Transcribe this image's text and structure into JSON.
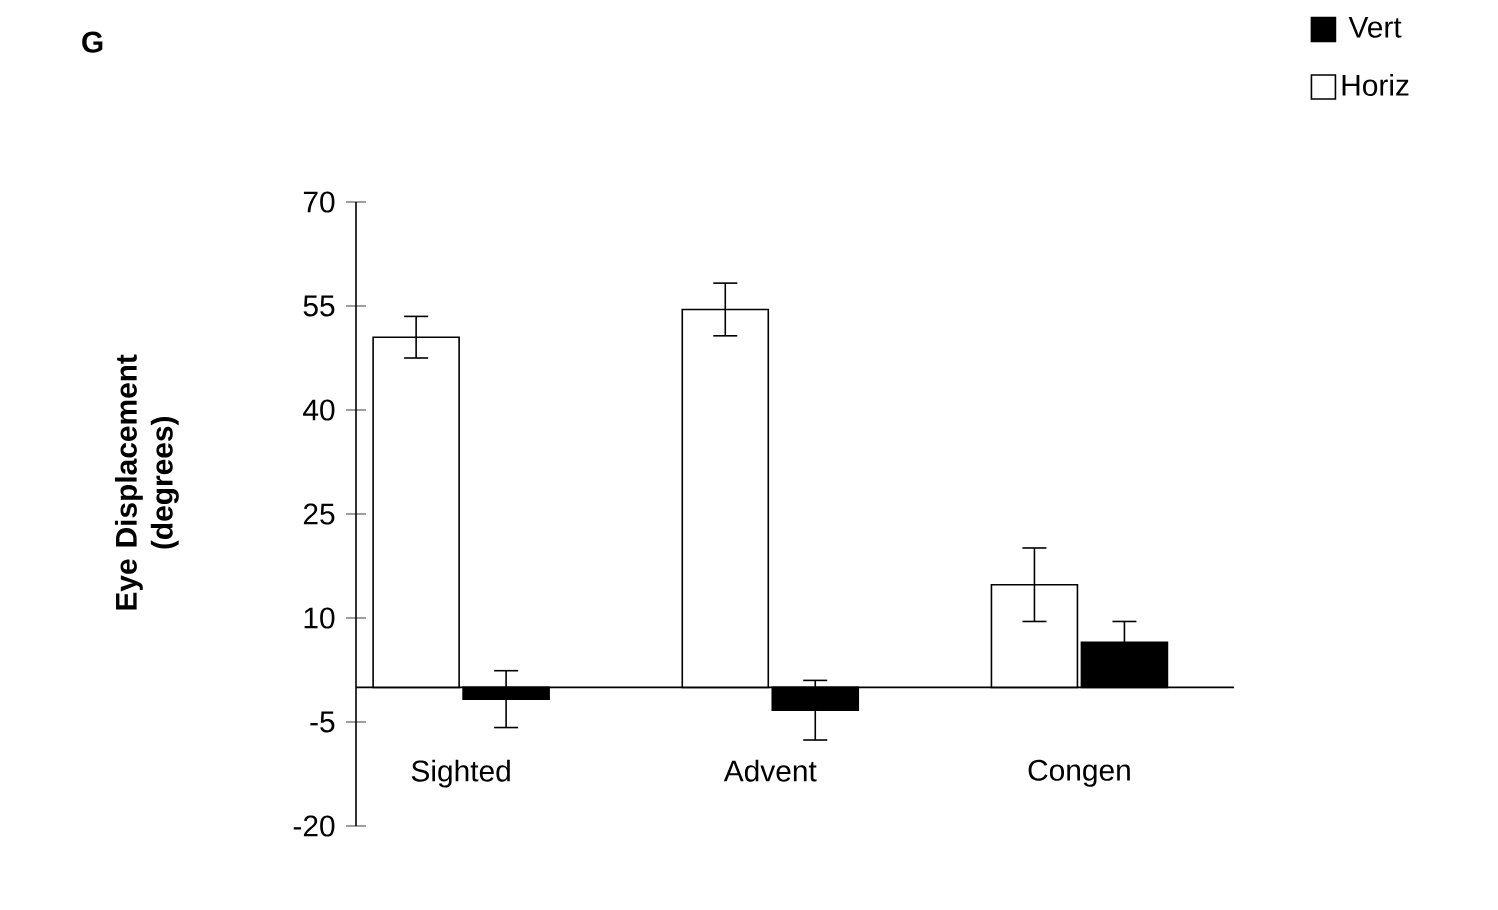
{
  "chart_data": {
    "type": "bar",
    "title": "G",
    "ylabel": "Eye Displacement (degrees)",
    "categories": [
      "Sighted",
      "Advent",
      "Congen"
    ],
    "series": [
      {
        "name": "Horiz",
        "color": "#ffffff",
        "values": [
          50.5,
          54.5,
          14.8
        ],
        "errors": [
          3,
          3.8,
          5.3
        ]
      },
      {
        "name": "Vert",
        "color": "#000000",
        "values": [
          -1.7,
          -3.3,
          6.5
        ],
        "errors": [
          4.1,
          4.3,
          3
        ]
      }
    ],
    "ylim": [
      -20,
      70
    ],
    "yticks": [
      -20,
      -5,
      10,
      25,
      40,
      55,
      70
    ],
    "legend": "top right"
  }
}
